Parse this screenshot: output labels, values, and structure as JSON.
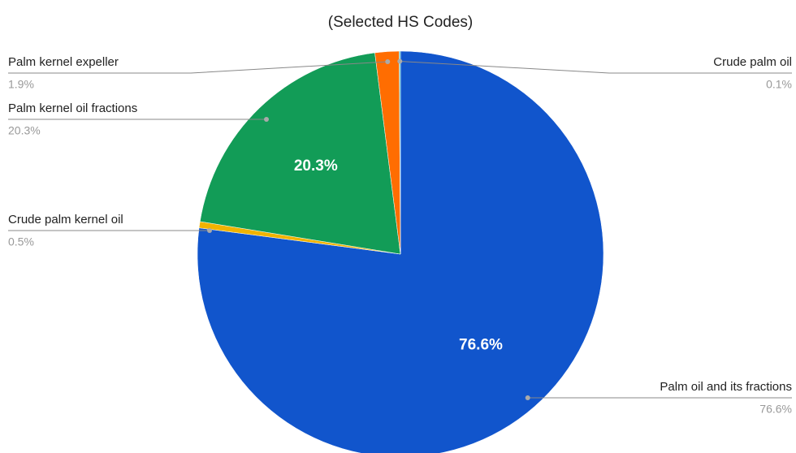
{
  "chart_data": {
    "type": "pie",
    "title": "(Selected HS Codes)",
    "categories": [
      "Palm oil and its fractions",
      "Crude palm kernel oil",
      "Palm kernel oil fractions",
      "Palm kernel expeller",
      "Crude palm oil"
    ],
    "values": [
      76.6,
      0.5,
      20.3,
      1.9,
      0.1
    ],
    "value_labels": [
      "76.6%",
      "0.5%",
      "20.3%",
      "1.9%",
      "0.1%"
    ],
    "colors": [
      "#1155cc",
      "#f1b300",
      "#129c57",
      "#ff6d01",
      "#46bdc6"
    ]
  }
}
